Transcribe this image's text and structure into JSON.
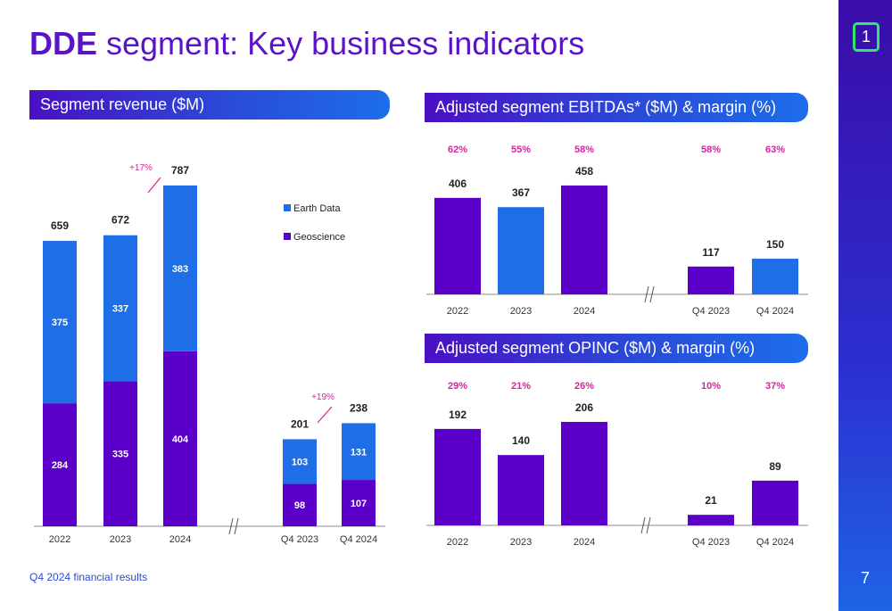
{
  "header": {
    "title_bold": "DDE",
    "title_rest": " segment: Key business indicators",
    "logo_text": "1",
    "page_number": "7"
  },
  "footer": {
    "text": "Q4 2024 financial results"
  },
  "colors": {
    "purple": "#5a00c8",
    "blue": "#1e6ee8",
    "magenta": "#d6249f",
    "title": "#5a14c8"
  },
  "panels": {
    "revenue_title": "Segment revenue ($M)",
    "ebitda_title": "Adjusted segment EBITDAs* ($M) & margin (%)",
    "opinc_title": "Adjusted segment OPINC ($M) & margin (%)"
  },
  "chart_data": [
    {
      "type": "bar",
      "stacked": true,
      "title": "Segment revenue ($M)",
      "categories": [
        "2022",
        "2023",
        "2024",
        "Q4 2023",
        "Q4 2024"
      ],
      "series": [
        {
          "name": "Geoscience",
          "values": [
            284,
            335,
            404,
            98,
            107
          ],
          "color": "#5a00c8"
        },
        {
          "name": "Earth Data",
          "values": [
            375,
            337,
            383,
            103,
            131
          ],
          "color": "#1e6ee8"
        }
      ],
      "totals": [
        "659",
        "672",
        "787",
        "201",
        "238"
      ],
      "growth_annotations": [
        "+17%",
        "+19%"
      ],
      "legend": [
        "Earth Data",
        "Geoscience"
      ],
      "legend_position": "right",
      "axis_break": "between 2024 and Q4 2023"
    },
    {
      "type": "bar",
      "title": "Adjusted segment EBITDAs* ($M) & margin (%)",
      "categories": [
        "2022",
        "2023",
        "2024",
        "Q4 2023",
        "Q4 2024"
      ],
      "values": [
        406,
        367,
        458,
        117,
        150
      ],
      "bar_colors": [
        "#5a00c8",
        "#1e6ee8",
        "#5a00c8",
        "#5a00c8",
        "#1e6ee8"
      ],
      "margins": [
        "62%",
        "55%",
        "58%",
        "58%",
        "63%"
      ],
      "axis_break": "between 2024 and Q4 2023"
    },
    {
      "type": "bar",
      "title": "Adjusted segment OPINC ($M) & margin (%)",
      "categories": [
        "2022",
        "2023",
        "2024",
        "Q4 2023",
        "Q4 2024"
      ],
      "values": [
        192,
        140,
        206,
        21,
        89
      ],
      "bar_colors": [
        "#5a00c8",
        "#5a00c8",
        "#5a00c8",
        "#5a00c8",
        "#5a00c8"
      ],
      "margins": [
        "29%",
        "21%",
        "26%",
        "10%",
        "37%"
      ],
      "axis_break": "between 2024 and Q4 2023"
    }
  ]
}
